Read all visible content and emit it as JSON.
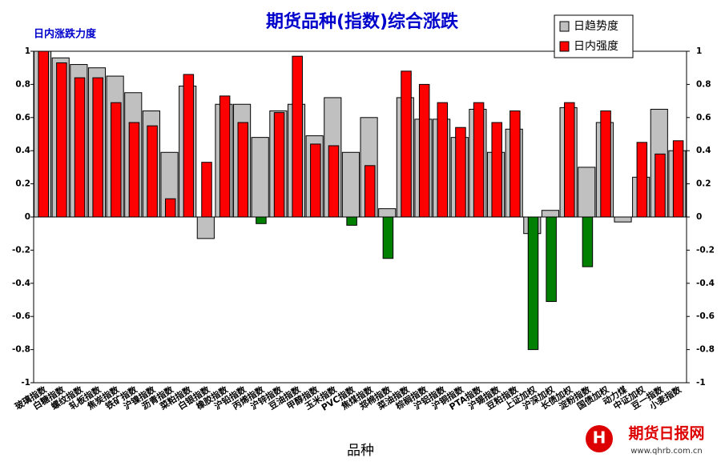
{
  "chart_data": {
    "type": "bar",
    "title": "期货品种(指数)综合涨跌",
    "y_label": "日内涨跌力度",
    "x_label": "品种",
    "categories": [
      "玻璃指数",
      "白糖指数",
      "螺纹指数",
      "轧板指数",
      "焦炭指数",
      "铁矿指数",
      "沪镍指数",
      "沥青指数",
      "菜粕指数",
      "白银指数",
      "橡胶指数",
      "沪铅指数",
      "丙烯指数",
      "沪锌指数",
      "豆油指数",
      "甲醇指数",
      "玉米指数",
      "PVC指数",
      "焦煤指数",
      "郑棉指数",
      "菜油指数",
      "棕榈指数",
      "沪铝指数",
      "沪铜指数",
      "PTA指数",
      "沪锡指数",
      "豆粕指数",
      "上证加权",
      "沪深加权",
      "长债加权",
      "淀粉指数",
      "国债加权",
      "动力煤",
      "中证加权",
      "豆一指数",
      "小麦指数"
    ],
    "series": [
      {
        "name": "日趋势度",
        "color": "#c0c0c0",
        "values": [
          1,
          0.96,
          0.92,
          0.9,
          0.85,
          0.75,
          0.64,
          0.39,
          0.79,
          -0.13,
          0.68,
          0.68,
          0.48,
          0.64,
          0.68,
          0.49,
          0.72,
          0.39,
          0.6,
          0.05,
          0.72,
          0.59,
          0.59,
          0.48,
          0.65,
          0.39,
          0.53,
          -0.1,
          0.04,
          0.66,
          0.3,
          0.57,
          -0.03,
          0.24,
          0.65,
          0.4
        ]
      },
      {
        "name": "日内强度",
        "color": "#ff0000",
        "negative_color": "#008000",
        "values": [
          1,
          0.93,
          0.84,
          0.84,
          0.69,
          0.57,
          0.55,
          0.11,
          0.86,
          0.33,
          0.73,
          0.57,
          -0.04,
          0.63,
          0.97,
          0.44,
          0.43,
          -0.05,
          0.31,
          -0.25,
          0.88,
          0.8,
          0.69,
          0.54,
          0.69,
          0.57,
          0.64,
          -0.8,
          -0.51,
          0.69,
          -0.3,
          0.64,
          0,
          0.45,
          0.38,
          0.46
        ]
      }
    ],
    "ylim": [
      -1,
      1
    ],
    "yticks": [
      1,
      0.8,
      0.6,
      0.4,
      0.2,
      0,
      -0.2,
      -0.4,
      -0.6,
      -0.8,
      -1
    ],
    "grid": false,
    "legend": "top-right",
    "watermark": {
      "name": "期货日报网",
      "url": "www.qhrb.com.cn"
    }
  }
}
